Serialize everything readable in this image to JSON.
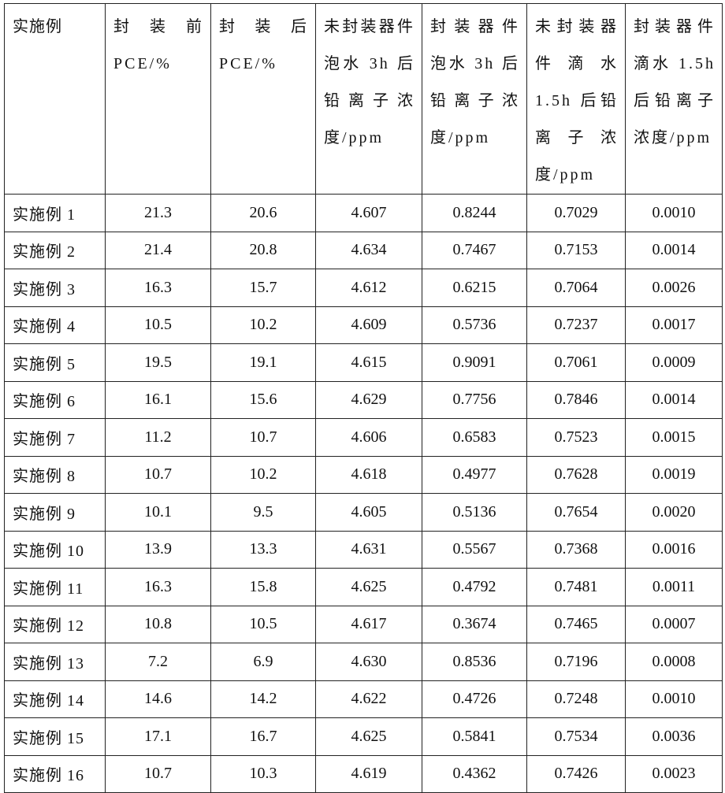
{
  "table": {
    "headers": [
      "实施例",
      "封 装 前 PCE/%",
      "封 装 后 PCE/%",
      "未封装器件泡水 3h 后铅离子浓度/ppm",
      "封装器件泡水 3h 后铅离子浓度/ppm",
      "未封装器件 滴 水 1.5h 后铅离子浓度/ppm",
      "封装器件滴水 1.5h 后铅离子浓度/ppm"
    ],
    "rows": [
      [
        "实施例 1",
        "21.3",
        "20.6",
        "4.607",
        "0.8244",
        "0.7029",
        "0.0010"
      ],
      [
        "实施例 2",
        "21.4",
        "20.8",
        "4.634",
        "0.7467",
        "0.7153",
        "0.0014"
      ],
      [
        "实施例 3",
        "16.3",
        "15.7",
        "4.612",
        "0.6215",
        "0.7064",
        "0.0026"
      ],
      [
        "实施例 4",
        "10.5",
        "10.2",
        "4.609",
        "0.5736",
        "0.7237",
        "0.0017"
      ],
      [
        "实施例 5",
        "19.5",
        "19.1",
        "4.615",
        "0.9091",
        "0.7061",
        "0.0009"
      ],
      [
        "实施例 6",
        "16.1",
        "15.6",
        "4.629",
        "0.7756",
        "0.7846",
        "0.0014"
      ],
      [
        "实施例 7",
        "11.2",
        "10.7",
        "4.606",
        "0.6583",
        "0.7523",
        "0.0015"
      ],
      [
        "实施例 8",
        "10.7",
        "10.2",
        "4.618",
        "0.4977",
        "0.7628",
        "0.0019"
      ],
      [
        "实施例 9",
        "10.1",
        "9.5",
        "4.605",
        "0.5136",
        "0.7654",
        "0.0020"
      ],
      [
        "实施例 10",
        "13.9",
        "13.3",
        "4.631",
        "0.5567",
        "0.7368",
        "0.0016"
      ],
      [
        "实施例 11",
        "16.3",
        "15.8",
        "4.625",
        "0.4792",
        "0.7481",
        "0.0011"
      ],
      [
        "实施例 12",
        "10.8",
        "10.5",
        "4.617",
        "0.3674",
        "0.7465",
        "0.0007"
      ],
      [
        "实施例 13",
        "7.2",
        "6.9",
        "4.630",
        "0.8536",
        "0.7196",
        "0.0008"
      ],
      [
        "实施例 14",
        "14.6",
        "14.2",
        "4.622",
        "0.4726",
        "0.7248",
        "0.0010"
      ],
      [
        "实施例 15",
        "17.1",
        "16.7",
        "4.625",
        "0.5841",
        "0.7534",
        "0.0036"
      ],
      [
        "实施例 16",
        "10.7",
        "10.3",
        "4.619",
        "0.4362",
        "0.7426",
        "0.0023"
      ]
    ]
  }
}
